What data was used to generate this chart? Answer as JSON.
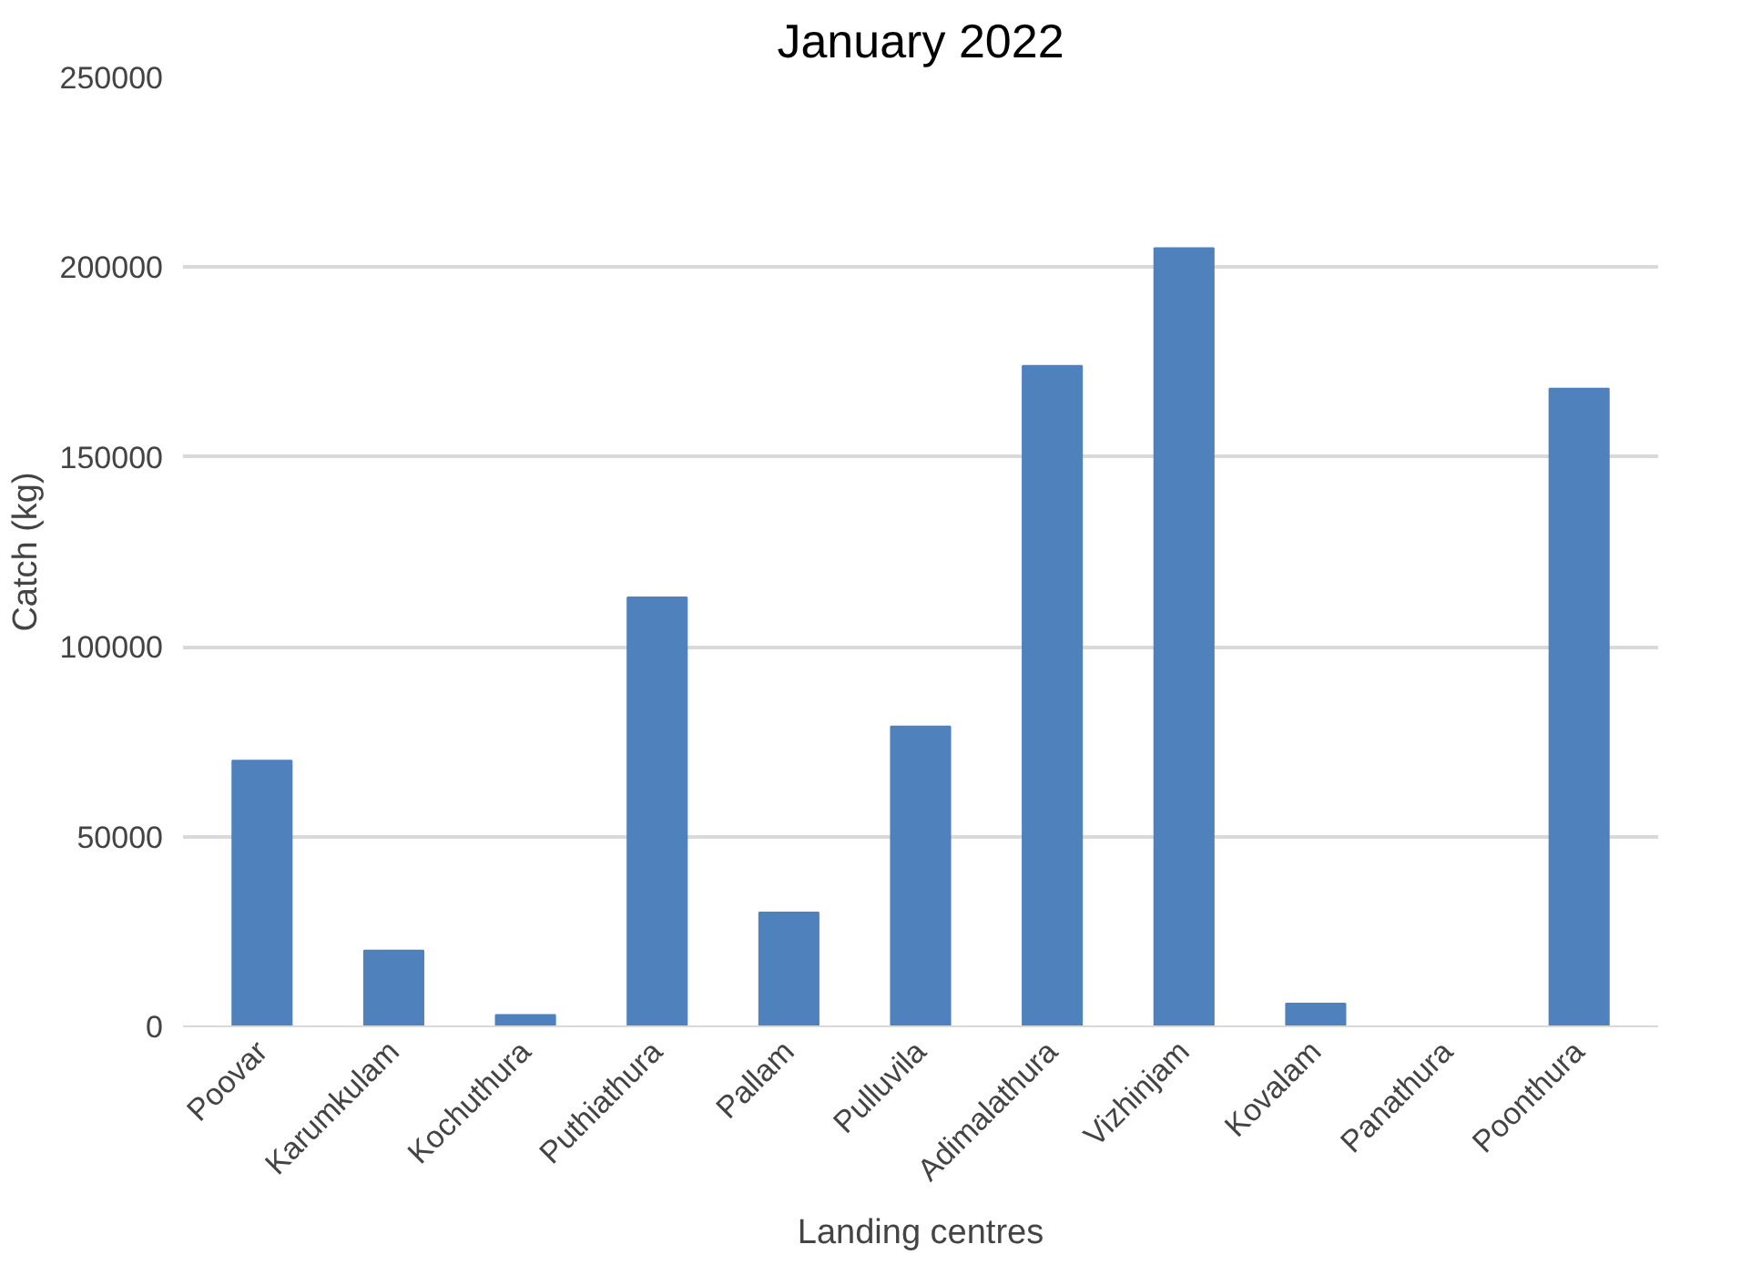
{
  "chart_data": {
    "type": "bar",
    "title": "January 2022",
    "xlabel": "Landing centres",
    "ylabel": "Catch (kg)",
    "categories": [
      "Poovar",
      "Karumkulam",
      "Kochuthura",
      "Puthiathura",
      "Pallam",
      "Pulluvila",
      "Adimalathura",
      "Vizhinjam",
      "Kovalam",
      "Panathura",
      "Poonthura"
    ],
    "values": [
      70000,
      20000,
      3000,
      113000,
      30000,
      79000,
      174000,
      205000,
      6000,
      0,
      168000
    ],
    "color": "#4f81bd",
    "ylim": [
      0,
      250000
    ],
    "yticks": [
      0,
      50000,
      100000,
      150000,
      200000,
      250000
    ],
    "grid": "y"
  }
}
